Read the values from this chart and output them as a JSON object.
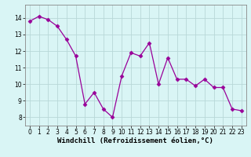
{
  "x": [
    0,
    1,
    2,
    3,
    4,
    5,
    6,
    7,
    8,
    9,
    10,
    11,
    12,
    13,
    14,
    15,
    16,
    17,
    18,
    19,
    20,
    21,
    22,
    23
  ],
  "y": [
    13.8,
    14.1,
    13.9,
    13.5,
    12.7,
    11.7,
    8.8,
    9.5,
    8.5,
    8.0,
    10.5,
    11.9,
    11.7,
    12.5,
    10.0,
    11.6,
    10.3,
    10.3,
    9.9,
    10.3,
    9.8,
    9.8,
    8.5,
    8.4
  ],
  "line_color": "#990099",
  "marker": "D",
  "marker_size": 2.5,
  "bg_color": "#d9f5f5",
  "grid_color": "#b8d8d8",
  "xlabel": "Windchill (Refroidissement éolien,°C)",
  "ylim_min": 7.5,
  "ylim_max": 14.8,
  "xlim_min": -0.5,
  "xlim_max": 23.5,
  "yticks": [
    8,
    9,
    10,
    11,
    12,
    13,
    14
  ],
  "xticks": [
    0,
    1,
    2,
    3,
    4,
    5,
    6,
    7,
    8,
    9,
    10,
    11,
    12,
    13,
    14,
    15,
    16,
    17,
    18,
    19,
    20,
    21,
    22,
    23
  ],
  "tick_fontsize": 5.5,
  "xlabel_fontsize": 6.5,
  "spine_color": "#888888"
}
